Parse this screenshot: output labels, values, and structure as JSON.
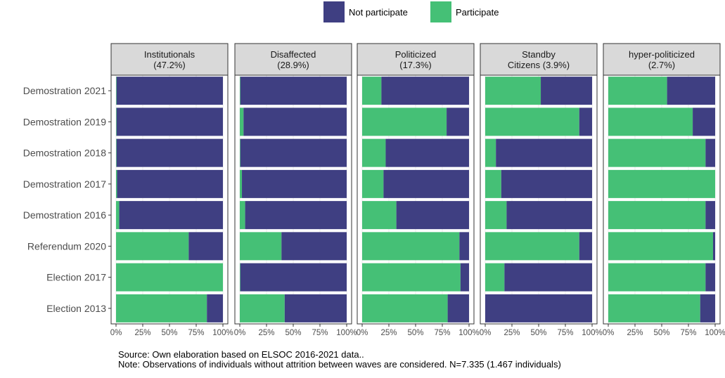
{
  "chart_data": {
    "type": "bar",
    "orientation": "horizontal",
    "stacked": "percent",
    "categories": [
      "Demostration 2021",
      "Demostration 2019",
      "Demostration 2018",
      "Demostration 2017",
      "Demostration 2016",
      "Referendum 2020",
      "Election 2017",
      "Election 2013"
    ],
    "panels": [
      {
        "title": [
          "Institutionals",
          "(47.2%)"
        ],
        "series": [
          {
            "name": "Participate",
            "values": [
              0.5,
              0.5,
              0.5,
              1,
              3,
              68,
              100,
              85
            ]
          },
          {
            "name": "Not participate",
            "values": [
              99.5,
              99.5,
              99.5,
              99,
              97,
              32,
              0,
              15
            ]
          }
        ]
      },
      {
        "title": [
          "Disaffected",
          "(28.9%)"
        ],
        "series": [
          {
            "name": "Participate",
            "values": [
              0.5,
              3.5,
              0.5,
              2,
              5,
              39,
              0.5,
              42
            ]
          },
          {
            "name": "Not participate",
            "values": [
              99.5,
              96.5,
              99.5,
              98,
              95,
              61,
              99.5,
              58
            ]
          }
        ]
      },
      {
        "title": [
          "Politicized",
          "(17.3%)"
        ],
        "series": [
          {
            "name": "Participate",
            "values": [
              18,
              79,
              22,
              20,
              32,
              91,
              92,
              80
            ]
          },
          {
            "name": "Not participate",
            "values": [
              82,
              21,
              78,
              80,
              68,
              9,
              8,
              20
            ]
          }
        ]
      },
      {
        "title": [
          "Standby",
          "Citizens (3.9%)"
        ],
        "series": [
          {
            "name": "Participate",
            "values": [
              52,
              88,
              10,
              15,
              20,
              88,
              18,
              0
            ]
          },
          {
            "name": "Not participate",
            "values": [
              48,
              12,
              90,
              85,
              80,
              12,
              82,
              100
            ]
          }
        ]
      },
      {
        "title": [
          "hyper-politicized",
          "(2.7%)"
        ],
        "series": [
          {
            "name": "Participate",
            "values": [
              55,
              79,
              91,
              100,
              91,
              98,
              91,
              86
            ]
          },
          {
            "name": "Not participate",
            "values": [
              45,
              21,
              9,
              0,
              9,
              2,
              9,
              14
            ]
          }
        ]
      }
    ],
    "x_ticks": [
      "0%",
      "25%",
      "50%",
      "75%",
      "100%"
    ],
    "xlim": [
      0,
      100
    ],
    "legend": {
      "placement": "top",
      "entries": [
        {
          "label": "Not participate",
          "color": "#3f3f82"
        },
        {
          "label": "Participate",
          "color": "#45c076"
        }
      ]
    },
    "colors": {
      "Not participate": "#3f3f82",
      "Participate": "#45c076"
    },
    "grid": true
  },
  "caption": {
    "source": "Source: Own elaboration based on ELSOC 2016-2021 data..",
    "note": "Note: Observations of individuals without attrition between waves are considered. N=7.335 (1.467 individuals)"
  }
}
